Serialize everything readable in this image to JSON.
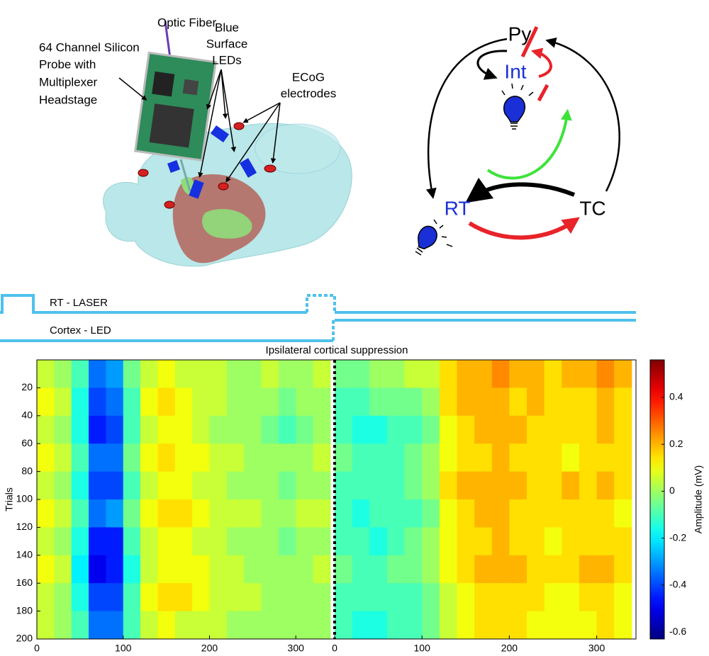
{
  "brain": {
    "optic_fiber": "Optic Fiber",
    "probe": [
      "64 Channel Silicon",
      "Probe with",
      "Multiplexer",
      "Headstage"
    ],
    "leds": [
      "Blue",
      "Surface",
      "LEDs"
    ],
    "ecog": [
      "ECoG",
      "electrodes"
    ]
  },
  "circuit": {
    "nodes": [
      "Py",
      "Int",
      "RT",
      "TC"
    ]
  },
  "stimulus": {
    "laser": "RT - LASER",
    "led": "Cortex - LED"
  },
  "chart_data": {
    "type": "heatmap",
    "title": "Ipsilateral cortical suppression",
    "ylabel": "Trials",
    "colorbar_label": "Amplitude (mV)",
    "colormap": "jet",
    "clim": [
      -0.63,
      0.56
    ],
    "cticks": [
      -0.6,
      -0.4,
      -0.2,
      0,
      0.2,
      0.4
    ],
    "ylim": [
      0,
      200
    ],
    "yticks": [
      20,
      40,
      60,
      80,
      100,
      120,
      140,
      160,
      180,
      200
    ],
    "y_edges": [
      0,
      20,
      40,
      60,
      80,
      100,
      120,
      140,
      160,
      180,
      200
    ],
    "panels": [
      {
        "xlim": [
          0,
          345
        ],
        "xticks": [
          0,
          100,
          200,
          300
        ],
        "x_edges": [
          0,
          20,
          40,
          60,
          80,
          100,
          120,
          140,
          160,
          180,
          200,
          220,
          240,
          260,
          280,
          300,
          320,
          340
        ],
        "values": [
          [
            0.05,
            0,
            -0.1,
            -0.35,
            -0.3,
            -0.05,
            0.05,
            0.1,
            0.05,
            0.05,
            0.05,
            0,
            0,
            0.05,
            0,
            0,
            0.05
          ],
          [
            0.1,
            0.05,
            -0.15,
            -0.4,
            -0.35,
            -0.1,
            0.1,
            0.15,
            0.1,
            0.05,
            0.05,
            0,
            0,
            0,
            -0.05,
            0,
            0
          ],
          [
            0.05,
            0,
            -0.15,
            -0.45,
            -0.4,
            -0.1,
            0.05,
            0.1,
            0.1,
            0.05,
            0,
            0,
            0,
            -0.05,
            -0.1,
            -0.05,
            0
          ],
          [
            0.1,
            0.05,
            -0.1,
            -0.35,
            -0.35,
            -0.05,
            0.1,
            0.15,
            0.1,
            0.1,
            0.05,
            0.05,
            0,
            0,
            0,
            0,
            0.05
          ],
          [
            0.05,
            0,
            -0.15,
            -0.4,
            -0.4,
            -0.1,
            0.05,
            0.1,
            0.1,
            0.05,
            0.05,
            0,
            0,
            0,
            -0.05,
            0,
            0
          ],
          [
            0.1,
            0.05,
            -0.1,
            -0.35,
            -0.3,
            -0.05,
            0.1,
            0.15,
            0.15,
            0.1,
            0.05,
            0.05,
            0.05,
            0,
            0,
            0.05,
            0.05
          ],
          [
            0.05,
            0,
            -0.15,
            -0.45,
            -0.45,
            -0.1,
            0.05,
            0.1,
            0.1,
            0.05,
            0.05,
            0,
            0,
            0,
            -0.05,
            0,
            0
          ],
          [
            0.1,
            0.05,
            -0.2,
            -0.5,
            -0.45,
            -0.15,
            0.05,
            0.1,
            0.1,
            0.1,
            0.05,
            0.05,
            0,
            0,
            0,
            0,
            0.05
          ],
          [
            0.05,
            0,
            -0.15,
            -0.4,
            -0.4,
            -0.1,
            0.1,
            0.15,
            0.15,
            0.1,
            0.05,
            0.05,
            0.05,
            0,
            0,
            0,
            0
          ],
          [
            0.05,
            0,
            -0.1,
            -0.35,
            -0.35,
            -0.1,
            0.05,
            0.1,
            0.05,
            0.05,
            0.05,
            0,
            0,
            0,
            0,
            0,
            0
          ]
        ]
      },
      {
        "xlim": [
          0,
          345
        ],
        "xticks": [
          0,
          100,
          200,
          300
        ],
        "x_edges": [
          0,
          20,
          40,
          60,
          80,
          100,
          120,
          140,
          160,
          180,
          200,
          220,
          240,
          260,
          280,
          300,
          320,
          340
        ],
        "values": [
          [
            -0.05,
            -0.05,
            0,
            0,
            0.05,
            0.05,
            0.15,
            0.2,
            0.2,
            0.25,
            0.2,
            0.2,
            0.15,
            0.2,
            0.2,
            0.25,
            0.2
          ],
          [
            -0.1,
            -0.1,
            -0.05,
            -0.05,
            -0.05,
            0,
            0.15,
            0.2,
            0.2,
            0.2,
            0.15,
            0.2,
            0.15,
            0.15,
            0.15,
            0.2,
            0.15
          ],
          [
            -0.1,
            -0.15,
            -0.15,
            -0.1,
            -0.1,
            -0.05,
            0.1,
            0.15,
            0.2,
            0.2,
            0.2,
            0.15,
            0.15,
            0.15,
            0.15,
            0.2,
            0.15
          ],
          [
            -0.05,
            -0.1,
            -0.1,
            -0.1,
            -0.05,
            0,
            0.1,
            0.15,
            0.15,
            0.2,
            0.15,
            0.15,
            0.15,
            0.1,
            0.15,
            0.15,
            0.15
          ],
          [
            -0.1,
            -0.1,
            -0.1,
            -0.1,
            -0.05,
            0,
            0.15,
            0.2,
            0.2,
            0.2,
            0.2,
            0.15,
            0.15,
            0.2,
            0.15,
            0.2,
            0.15
          ],
          [
            -0.1,
            -0.15,
            -0.1,
            -0.1,
            -0.1,
            -0.05,
            0.1,
            0.15,
            0.2,
            0.2,
            0.15,
            0.15,
            0.15,
            0.15,
            0.15,
            0.15,
            0.1
          ],
          [
            -0.1,
            -0.1,
            -0.15,
            -0.1,
            -0.05,
            0,
            0.1,
            0.15,
            0.15,
            0.2,
            0.15,
            0.15,
            0.1,
            0.15,
            0.15,
            0.15,
            0.15
          ],
          [
            -0.05,
            -0.1,
            -0.1,
            -0.05,
            -0.05,
            0,
            0.1,
            0.15,
            0.2,
            0.2,
            0.2,
            0.15,
            0.15,
            0.15,
            0.2,
            0.2,
            0.15
          ],
          [
            -0.1,
            -0.1,
            -0.1,
            -0.1,
            -0.1,
            -0.05,
            0.05,
            0.1,
            0.15,
            0.15,
            0.15,
            0.15,
            0.1,
            0.1,
            0.15,
            0.15,
            0.1
          ],
          [
            -0.1,
            -0.15,
            -0.15,
            -0.1,
            -0.1,
            -0.05,
            0.05,
            0.1,
            0.15,
            0.15,
            0.15,
            0.1,
            0.1,
            0.1,
            0.1,
            0.15,
            0.1
          ]
        ]
      }
    ]
  }
}
